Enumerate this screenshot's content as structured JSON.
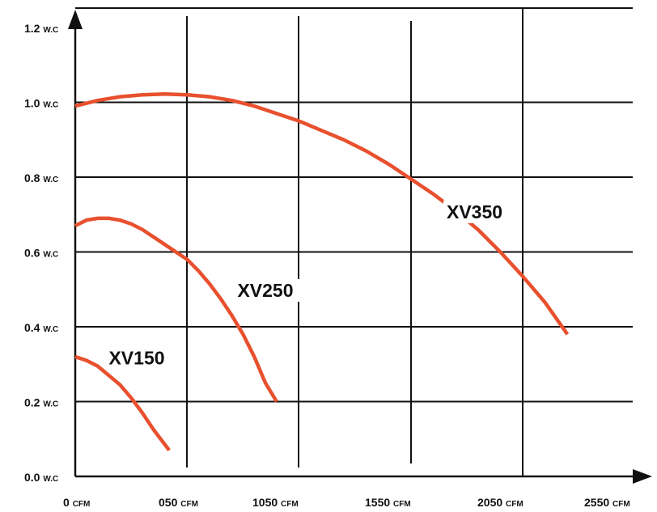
{
  "chart_data": {
    "type": "line",
    "title": "",
    "xlabel": "",
    "ylabel": "",
    "x_ticks": [
      {
        "value": 0,
        "num": "0",
        "unit": "CFM"
      },
      {
        "value": 500,
        "num": "050",
        "unit": "CFM"
      },
      {
        "value": 1000,
        "num": "1050",
        "unit": "CFM"
      },
      {
        "value": 1500,
        "num": "1550",
        "unit": "CFM"
      },
      {
        "value": 2000,
        "num": "2050",
        "unit": "CFM"
      },
      {
        "value": 2500,
        "num": "2550",
        "unit": "CFM"
      }
    ],
    "y_ticks": [
      {
        "value": 0.0,
        "num": "0.0",
        "unit": "W.C"
      },
      {
        "value": 0.2,
        "num": "0.2",
        "unit": "W.C"
      },
      {
        "value": 0.4,
        "num": "0.4",
        "unit": "W.C"
      },
      {
        "value": 0.6,
        "num": "0.6",
        "unit": "W.C"
      },
      {
        "value": 0.8,
        "num": "0.8",
        "unit": "W.C"
      },
      {
        "value": 1.0,
        "num": "1.0",
        "unit": "W.C"
      },
      {
        "value": 1.2,
        "num": "1.2",
        "unit": "W.C"
      }
    ],
    "xlim": [
      0,
      2500
    ],
    "ylim": [
      0,
      1.2
    ],
    "grid": true,
    "curve_color": "#e8502e",
    "series": [
      {
        "name": "XV150",
        "label_at": [
          150,
          0.3
        ],
        "points": [
          [
            0,
            0.32
          ],
          [
            50,
            0.31
          ],
          [
            100,
            0.295
          ],
          [
            150,
            0.27
          ],
          [
            200,
            0.245
          ],
          [
            250,
            0.21
          ],
          [
            300,
            0.17
          ],
          [
            350,
            0.125
          ],
          [
            420,
            0.07
          ]
        ]
      },
      {
        "name": "XV250",
        "label_at": [
          725,
          0.48
        ],
        "points": [
          [
            0,
            0.67
          ],
          [
            50,
            0.685
          ],
          [
            100,
            0.69
          ],
          [
            150,
            0.69
          ],
          [
            200,
            0.685
          ],
          [
            250,
            0.675
          ],
          [
            300,
            0.66
          ],
          [
            350,
            0.64
          ],
          [
            400,
            0.62
          ],
          [
            450,
            0.6
          ],
          [
            500,
            0.58
          ],
          [
            550,
            0.55
          ],
          [
            600,
            0.515
          ],
          [
            650,
            0.475
          ],
          [
            700,
            0.43
          ],
          [
            750,
            0.38
          ],
          [
            800,
            0.32
          ],
          [
            850,
            0.25
          ],
          [
            900,
            0.2
          ]
        ]
      },
      {
        "name": "XV350",
        "label_at": [
          1660,
          0.69
        ],
        "points": [
          [
            0,
            0.99
          ],
          [
            100,
            1.005
          ],
          [
            200,
            1.015
          ],
          [
            300,
            1.02
          ],
          [
            400,
            1.022
          ],
          [
            500,
            1.02
          ],
          [
            600,
            1.015
          ],
          [
            700,
            1.005
          ],
          [
            800,
            0.99
          ],
          [
            900,
            0.97
          ],
          [
            1000,
            0.95
          ],
          [
            1100,
            0.925
          ],
          [
            1200,
            0.9
          ],
          [
            1300,
            0.87
          ],
          [
            1400,
            0.835
          ],
          [
            1500,
            0.795
          ],
          [
            1600,
            0.755
          ],
          [
            1700,
            0.71
          ],
          [
            1800,
            0.66
          ],
          [
            1900,
            0.6
          ],
          [
            2000,
            0.535
          ],
          [
            2100,
            0.465
          ],
          [
            2200,
            0.38
          ]
        ]
      }
    ]
  }
}
